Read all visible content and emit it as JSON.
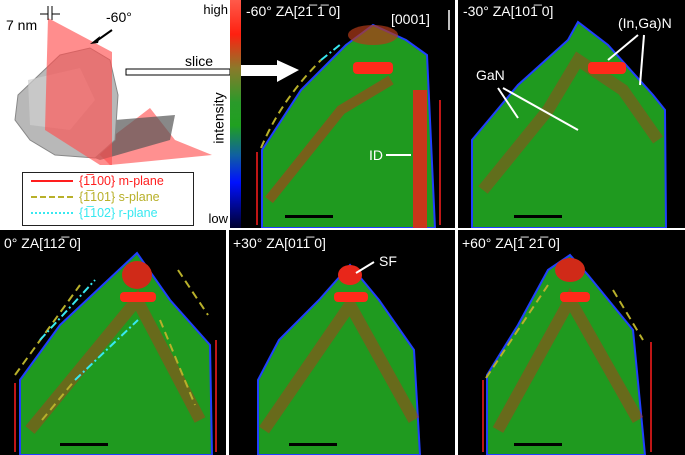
{
  "colors": {
    "m_plane": "#ff1e1e",
    "s_plane": "#b8b02a",
    "r_plane": "#38e8f0",
    "green": "#1f9a1f",
    "red": "#e8261a"
  },
  "overview": {
    "thickness": "7 nm",
    "angle": "-60°",
    "slice": "slice"
  },
  "legend": [
    {
      "label": "{1̅100} m-plane",
      "style": "solid"
    },
    {
      "label": "{1̅101} s-plane",
      "style": "dashed"
    },
    {
      "label": "{1̅102} r-plane",
      "style": "dash-dot"
    }
  ],
  "colorbar": {
    "high": "high",
    "low": "low",
    "title": "intensity"
  },
  "panels": [
    {
      "title": "-60° ZA[21̅ 1̅ 0]",
      "axis": "[0001]",
      "annotation": "ID"
    },
    {
      "title": "-30° ZA[101̅ 0]",
      "annotations": [
        "(In,Ga)N",
        "GaN"
      ]
    },
    {
      "title": "0° ZA[112̅ 0]"
    },
    {
      "title": "+30° ZA[011̅ 0]",
      "annotation": "SF"
    },
    {
      "title": "+60° ZA[1̅ 21̅ 0]"
    }
  ]
}
